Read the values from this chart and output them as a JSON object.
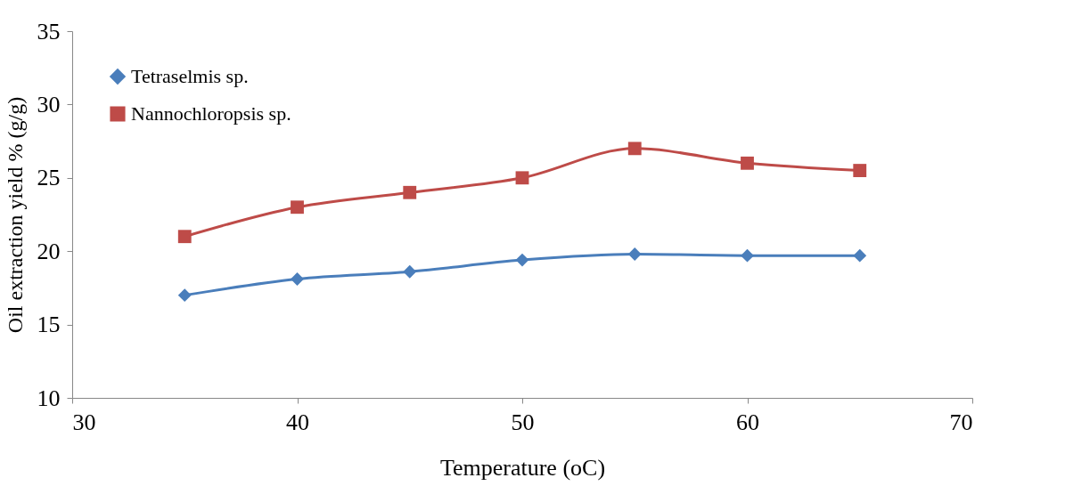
{
  "chart_data": {
    "type": "line",
    "xlabel": "Temperature (oC)",
    "ylabel": "Oil extraction yield % (g/g)",
    "x": [
      35,
      40,
      45,
      50,
      55,
      60,
      65
    ],
    "series": [
      {
        "name": "Tetraselmis sp.",
        "color": "#4a7ebb",
        "marker": "diamond",
        "values": [
          17.0,
          18.1,
          18.6,
          19.4,
          19.8,
          19.7,
          19.7
        ]
      },
      {
        "name": "Nannochloropsis sp.",
        "color": "#be4b48",
        "marker": "square",
        "values": [
          21,
          23,
          24,
          25,
          27,
          26,
          25.5
        ]
      }
    ],
    "xlim": [
      30,
      70
    ],
    "xticks": [
      30,
      40,
      50,
      60,
      70
    ],
    "ylim": [
      10,
      35
    ],
    "yticks": [
      10,
      15,
      20,
      25,
      30,
      35
    ],
    "grid": false,
    "legend": "top left",
    "line_style": "solid"
  }
}
